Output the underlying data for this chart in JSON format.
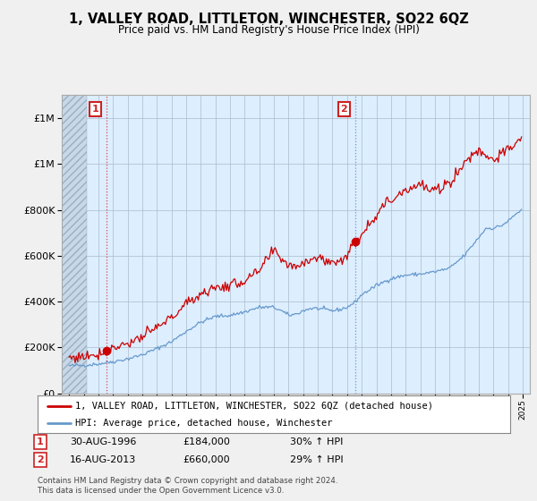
{
  "title": "1, VALLEY ROAD, LITTLETON, WINCHESTER, SO22 6QZ",
  "subtitle": "Price paid vs. HM Land Registry's House Price Index (HPI)",
  "legend_line1": "1, VALLEY ROAD, LITTLETON, WINCHESTER, SO22 6QZ (detached house)",
  "legend_line2": "HPI: Average price, detached house, Winchester",
  "transaction1_label_col1": "30-AUG-1996",
  "transaction1_label_col2": "£184,000",
  "transaction1_label_col3": "30% ↑ HPI",
  "transaction2_label_col1": "16-AUG-2013",
  "transaction2_label_col2": "£660,000",
  "transaction2_label_col3": "29% ↑ HPI",
  "red_color": "#cc0000",
  "blue_color": "#6699cc",
  "vline1_color": "#dd4444",
  "vline2_color": "#6699cc",
  "plot_bg_color": "#ddeeff",
  "hatch_bg_color": "#c8d8e8",
  "grid_color": "#aabbcc",
  "box_color": "#cc2222",
  "background_color": "#f0f0f0",
  "ylim": [
    0,
    1300000
  ],
  "xlim_start": 1993.5,
  "xlim_end": 2025.5,
  "hatch_end": 1995.2,
  "t1_x": 1996.583,
  "t1_y": 184000,
  "t2_x": 2013.583,
  "t2_y": 660000,
  "footer": "Contains HM Land Registry data © Crown copyright and database right 2024.\nThis data is licensed under the Open Government Licence v3.0."
}
